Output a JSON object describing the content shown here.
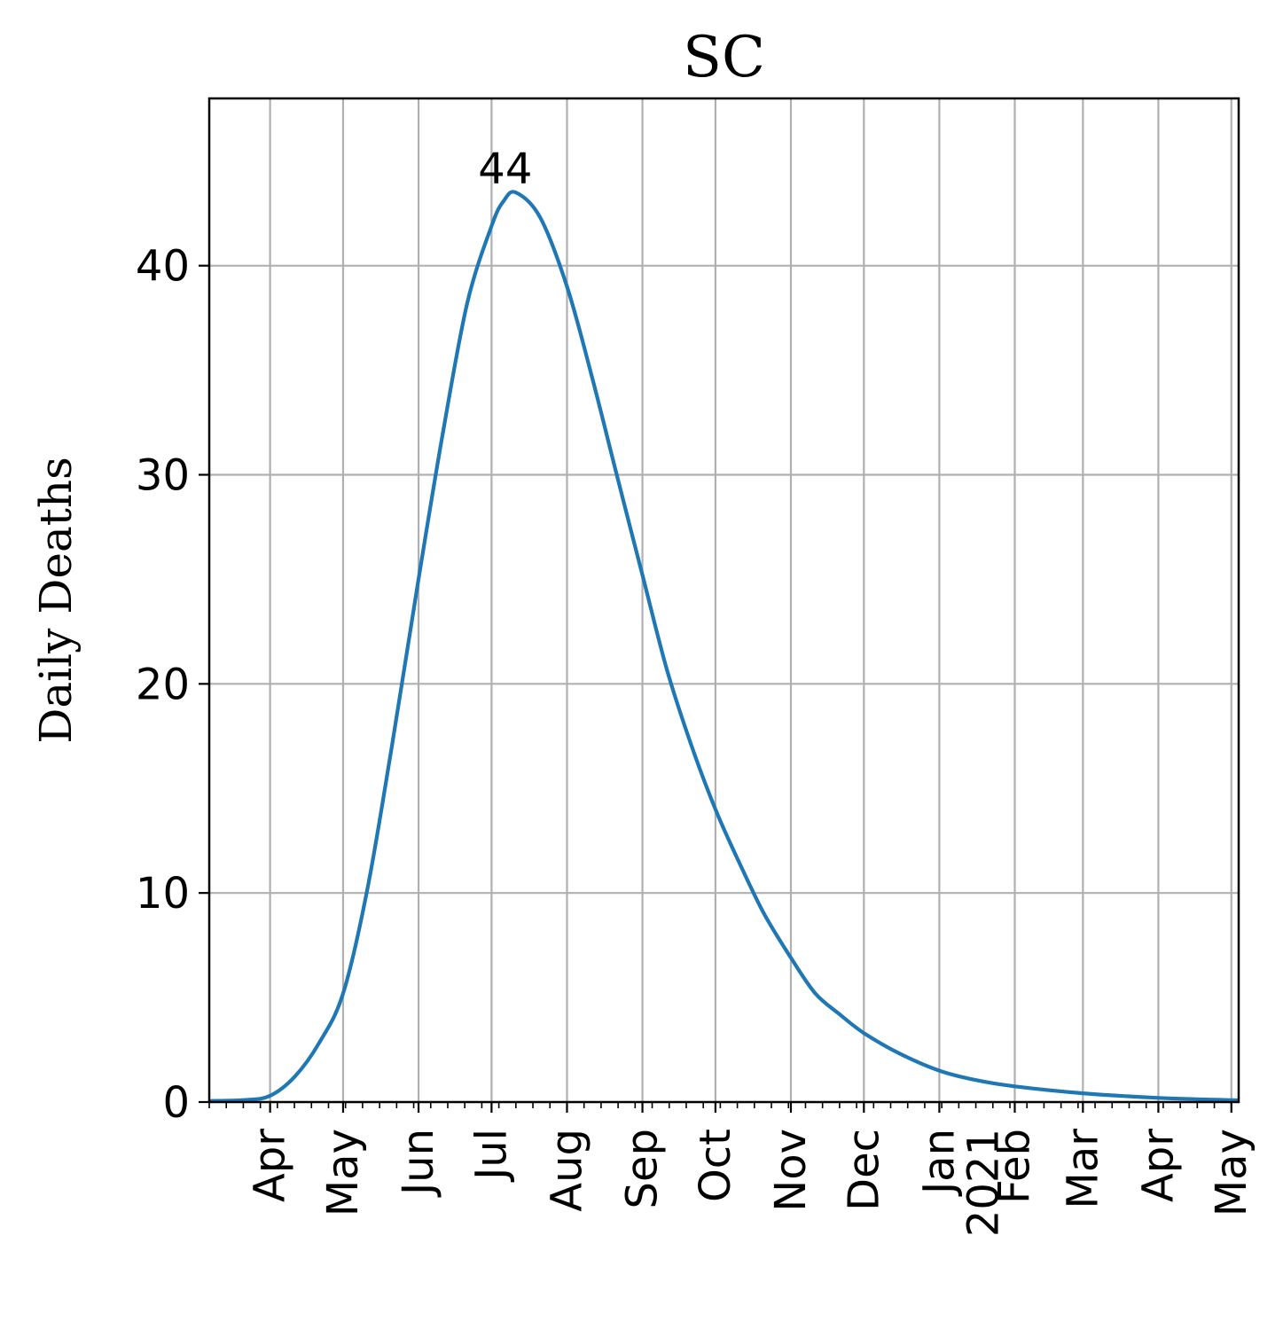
{
  "chart_data": {
    "type": "line",
    "title": "SC",
    "xlabel": "",
    "ylabel": "Daily Deaths",
    "ylim": [
      0,
      48
    ],
    "yticks": [
      0,
      10,
      20,
      30,
      40
    ],
    "xlim": [
      "2020-03-07",
      "2021-05-04"
    ],
    "grid": true,
    "color": "#1f77b4",
    "xtick_labels": [
      {
        "date": "2020-04-01",
        "label": "Apr"
      },
      {
        "date": "2020-05-01",
        "label": "May"
      },
      {
        "date": "2020-06-01",
        "label": "Jun"
      },
      {
        "date": "2020-07-01",
        "label": "Jul"
      },
      {
        "date": "2020-08-01",
        "label": "Aug"
      },
      {
        "date": "2020-09-01",
        "label": "Sep"
      },
      {
        "date": "2020-10-01",
        "label": "Oct"
      },
      {
        "date": "2020-11-01",
        "label": "Nov"
      },
      {
        "date": "2020-12-01",
        "label": "Dec"
      },
      {
        "date": "2021-01-01",
        "label": "Jan\n2021"
      },
      {
        "date": "2021-02-01",
        "label": "Feb"
      },
      {
        "date": "2021-03-01",
        "label": "Mar"
      },
      {
        "date": "2021-04-01",
        "label": "Apr"
      },
      {
        "date": "2021-05-01",
        "label": "May"
      }
    ],
    "series": [
      {
        "x": [
          "2020-03-07",
          "2020-03-22",
          "2020-04-01",
          "2020-04-11",
          "2020-04-21",
          "2020-05-01",
          "2020-05-11",
          "2020-05-21",
          "2020-06-01",
          "2020-06-11",
          "2020-06-21",
          "2020-07-01",
          "2020-07-06",
          "2020-07-11",
          "2020-07-21",
          "2020-08-01",
          "2020-08-11",
          "2020-08-21",
          "2020-09-01",
          "2020-09-11",
          "2020-09-21",
          "2020-10-01",
          "2020-10-11",
          "2020-10-21",
          "2020-11-01",
          "2020-11-11",
          "2020-11-21",
          "2020-12-01",
          "2020-12-16",
          "2021-01-01",
          "2021-01-16",
          "2021-02-01",
          "2021-03-01",
          "2021-04-01",
          "2021-05-04"
        ],
        "y": [
          0.05,
          0.1,
          0.3,
          1.2,
          2.8,
          5.2,
          10.2,
          17.0,
          25.0,
          32.0,
          38.2,
          41.9,
          43.1,
          43.5,
          42.3,
          39.0,
          34.8,
          30.2,
          25.2,
          20.7,
          17.1,
          14.0,
          11.4,
          9.0,
          6.9,
          5.2,
          4.2,
          3.3,
          2.3,
          1.5,
          1.05,
          0.75,
          0.42,
          0.2,
          0.08
        ]
      }
    ],
    "annotations": [
      {
        "text": "44",
        "x": "2020-07-11",
        "y": 43.5
      }
    ]
  }
}
